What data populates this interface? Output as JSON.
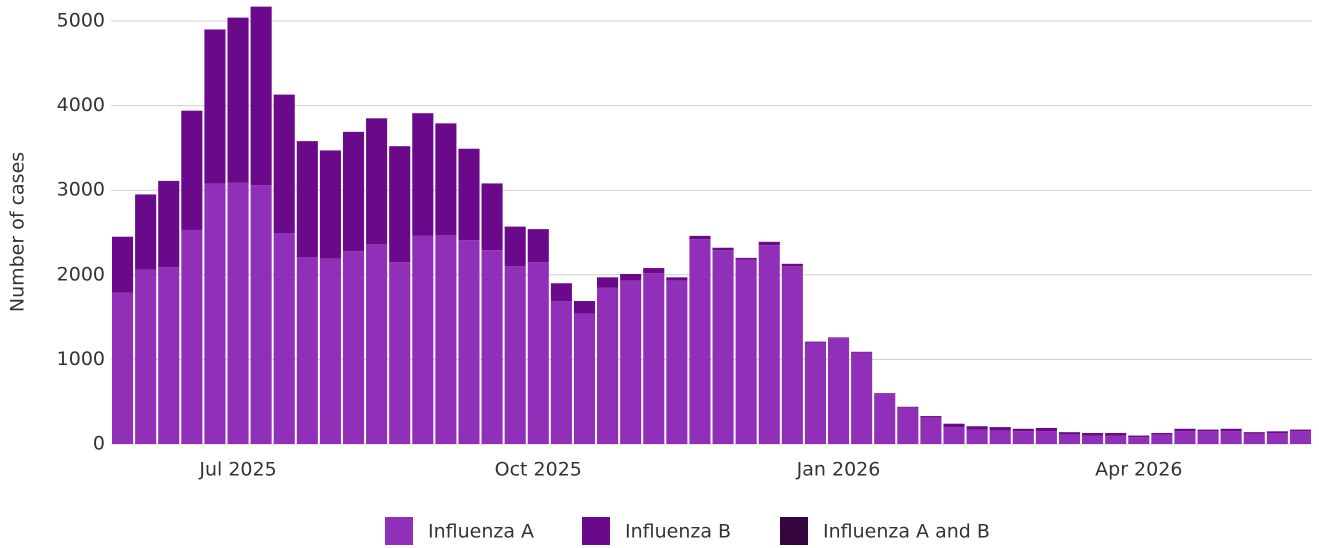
{
  "chart_data": {
    "type": "stacked_bar",
    "y_label": "Number of cases",
    "categories": [
      null,
      null,
      null,
      null,
      null,
      "Jul 2025",
      null,
      null,
      null,
      null,
      null,
      null,
      null,
      null,
      null,
      null,
      null,
      null,
      "Oct 2025",
      null,
      null,
      null,
      null,
      null,
      null,
      null,
      null,
      null,
      null,
      null,
      null,
      "Jan 2026",
      null,
      null,
      null,
      null,
      null,
      null,
      null,
      null,
      null,
      null,
      null,
      null,
      "Apr 2026",
      null,
      null,
      null,
      null,
      null,
      null,
      null
    ],
    "series": [
      {
        "name": "Influenza A",
        "color": "#9030b8",
        "values": [
          1790,
          2060,
          2090,
          2530,
          3080,
          3090,
          3060,
          2490,
          2210,
          2190,
          2280,
          2360,
          2150,
          2460,
          2470,
          2410,
          2290,
          2100,
          2150,
          1690,
          1540,
          1850,
          1930,
          2020,
          1930,
          2420,
          2290,
          2180,
          2350,
          2100,
          1200,
          1250,
          1080,
          590,
          430,
          310,
          200,
          170,
          160,
          150,
          150,
          110,
          100,
          100,
          80,
          110,
          150,
          150,
          150,
          120,
          130,
          150
        ]
      },
      {
        "name": "Influenza B",
        "color": "#6a0a8a",
        "values": [
          660,
          890,
          1020,
          1410,
          1820,
          1950,
          2110,
          1640,
          1370,
          1280,
          1410,
          1490,
          1370,
          1450,
          1320,
          1080,
          790,
          470,
          390,
          210,
          150,
          120,
          80,
          60,
          40,
          40,
          30,
          20,
          40,
          30,
          10,
          10,
          10,
          10,
          10,
          20,
          40,
          40,
          40,
          30,
          40,
          30,
          30,
          30,
          20,
          20,
          30,
          20,
          30,
          20,
          20,
          20
        ]
      },
      {
        "name": "Influenza A and B",
        "color": "#35053f",
        "values": [
          0,
          0,
          0,
          0,
          0,
          0,
          0,
          0,
          0,
          0,
          0,
          0,
          0,
          0,
          0,
          0,
          0,
          0,
          0,
          0,
          0,
          0,
          0,
          0,
          0,
          0,
          0,
          0,
          0,
          0,
          0,
          0,
          0,
          0,
          0,
          0,
          0,
          0,
          0,
          0,
          0,
          0,
          0,
          0,
          0,
          0,
          0,
          0,
          0,
          0,
          0,
          0
        ]
      }
    ],
    "ylim": [
      0,
      5000
    ],
    "yticks": [
      0,
      1000,
      2000,
      3000,
      4000,
      5000
    ],
    "grid": true
  }
}
